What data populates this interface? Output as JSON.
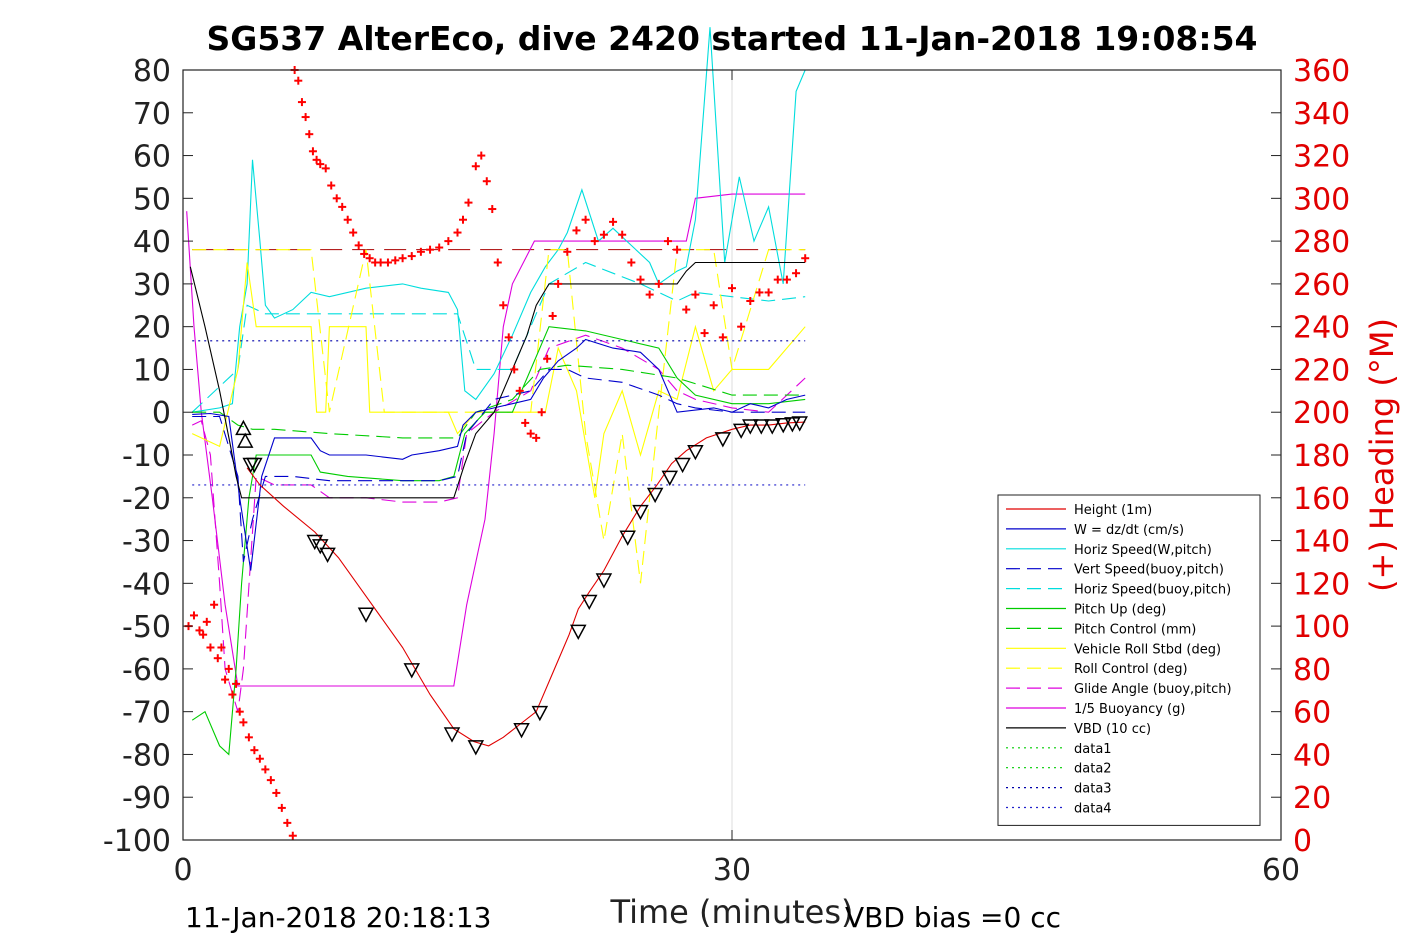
{
  "chart_data": {
    "type": "line",
    "title": "SG537 AlterEco, dive 2420 started 11-Jan-2018 19:08:54",
    "xlabel": "Time (minutes)",
    "ylabel": "",
    "y2label": "(+) Heading (°M)",
    "xlim": [
      0,
      60
    ],
    "ylim": [
      -100,
      80
    ],
    "y2lim": [
      0,
      360
    ],
    "xticks": [
      "0",
      "30",
      "60"
    ],
    "yticks": [
      "80",
      "70",
      "60",
      "50",
      "40",
      "30",
      "20",
      "10",
      "0",
      "-10",
      "-20",
      "-30",
      "-40",
      "-50",
      "-60",
      "-70",
      "-80",
      "-90",
      "-100"
    ],
    "y2ticks": [
      "360",
      "340",
      "320",
      "300",
      "280",
      "260",
      "240",
      "220",
      "200",
      "180",
      "160",
      "140",
      "120",
      "100",
      "80",
      "60",
      "40",
      "20",
      "0"
    ],
    "grid": "x-only at 30",
    "legend_position": "lower-right",
    "colors": {
      "height": "#e00000",
      "w": "#0000cc",
      "horiz": "#00dddd",
      "green": "#00cc00",
      "yellow": "#ffff00",
      "magenta": "#dd00dd",
      "black": "#000000",
      "heading": "#ff0000",
      "data3": "#0000aa",
      "data4": "#2222cc"
    },
    "series": [
      {
        "name": "Height (1m)",
        "color": "#e00000",
        "style": "solid",
        "x": [
          3.5,
          4.2,
          5.5,
          7.2,
          8.5,
          10,
          12,
          13.5,
          14.8,
          15.9,
          16.7,
          17.5,
          18.4,
          19.3,
          20.3,
          21.1,
          21.6,
          22.2,
          23,
          24,
          25,
          25.9,
          26.7,
          27.5,
          28.6,
          30,
          31,
          32,
          33,
          34
        ],
        "y": [
          -13,
          -17,
          -22,
          -28,
          -34,
          -43,
          -55,
          -66,
          -74,
          -77,
          -78,
          -76,
          -73,
          -70,
          -60,
          -52,
          -46,
          -42,
          -37,
          -29,
          -22,
          -17,
          -12,
          -9,
          -6,
          -4,
          -3,
          -3,
          -2.5,
          -2.3
        ]
      },
      {
        "name": "W = dz/dt (cm/s)",
        "color": "#0000cc",
        "style": "solid",
        "x": [
          0.5,
          1.5,
          2.5,
          3.1,
          3.7,
          4.3,
          5,
          6,
          7,
          7.5,
          8,
          10,
          12,
          12.5,
          14,
          15,
          15.3,
          16,
          17,
          18,
          19,
          19.7,
          20.5,
          21.5,
          22,
          23.5,
          25,
          26,
          27,
          29,
          30,
          31,
          32,
          33,
          34
        ],
        "y": [
          -0.5,
          -0.3,
          -1,
          -20,
          -37,
          -15,
          -6,
          -6,
          -6,
          -9,
          -10,
          -10,
          -11,
          -10,
          -9,
          -8,
          -3,
          0,
          1,
          2,
          3,
          8,
          12,
          15,
          17,
          15,
          14,
          10,
          0,
          1,
          0,
          2,
          1,
          3,
          4
        ]
      },
      {
        "name": "Horiz Speed(W,pitch)",
        "color": "#00dddd",
        "style": "solid",
        "x": [
          0.5,
          2,
          2.7,
          3.1,
          3.5,
          3.8,
          4.2,
          4.5,
          5,
          6,
          6.5,
          7,
          8,
          10,
          12,
          13,
          14.5,
          15,
          15.4,
          16,
          17,
          18,
          19,
          19.8,
          20.5,
          21,
          21.8,
          22.7,
          23.5,
          24.5,
          25.5,
          26,
          27,
          27.5,
          28,
          28.8,
          29.6,
          30.4,
          31.2,
          32,
          32.8,
          33.5,
          34
        ],
        "y": [
          0,
          1,
          2,
          20,
          30,
          59,
          40,
          25,
          22,
          24,
          26,
          28,
          27,
          29,
          30,
          29,
          28,
          24,
          5,
          3,
          9,
          18,
          28,
          34,
          38,
          42,
          52,
          40,
          43,
          39,
          35,
          30,
          33,
          34,
          45,
          90,
          35,
          55,
          40,
          48,
          30,
          75,
          80
        ]
      },
      {
        "name": "Vert Speed(buoy,pitch)",
        "color": "#0000cc",
        "style": "dashed",
        "x": [
          0.5,
          2,
          3,
          3.3,
          3.8,
          4.5,
          6,
          8,
          10,
          12,
          14,
          15,
          15.5,
          17,
          19,
          20,
          21,
          22,
          24,
          26,
          27,
          28,
          30,
          32,
          34
        ],
        "y": [
          -1,
          -1,
          -15,
          -35,
          -25,
          -15,
          -15,
          -16,
          -16,
          -16,
          -16,
          -15,
          -5,
          3,
          5,
          10,
          10,
          8,
          7,
          4,
          2,
          1,
          0,
          0,
          0
        ]
      },
      {
        "name": "Horiz Speed(buoy,pitch)",
        "color": "#00dddd",
        "style": "dashed",
        "x": [
          0.5,
          3,
          3.5,
          4.5,
          8,
          12,
          15,
          16,
          18,
          20,
          22,
          25,
          27,
          28,
          30,
          32,
          34
        ],
        "y": [
          0,
          10,
          25,
          23,
          23,
          23,
          23,
          10,
          10,
          30,
          35,
          30,
          26,
          28,
          27,
          26,
          27
        ]
      },
      {
        "name": "Pitch Up (deg)",
        "color": "#00cc00",
        "style": "solid",
        "x": [
          0.5,
          1.2,
          2,
          2.5,
          2.9,
          3.2,
          3.6,
          4,
          4.5,
          6,
          7,
          7.5,
          9,
          12,
          14,
          14.8,
          15.4,
          16.5,
          18,
          19.2,
          20,
          22,
          24,
          26,
          27,
          28,
          30,
          32,
          34
        ],
        "y": [
          -72,
          -70,
          -78,
          -80,
          -60,
          -40,
          -20,
          -10,
          -10,
          -10,
          -10,
          -14,
          -15,
          -16,
          -16,
          -15,
          -5,
          0,
          0,
          12,
          20,
          19,
          17,
          15,
          8,
          4,
          2,
          2,
          3
        ]
      },
      {
        "name": "Pitch Control (mm)",
        "color": "#00cc00",
        "style": "dashed",
        "x": [
          0.5,
          2,
          3,
          3.8,
          5,
          8,
          12,
          15,
          16,
          18,
          19.5,
          21,
          24,
          27,
          30,
          34
        ],
        "y": [
          0,
          0,
          -3,
          -4,
          -4,
          -5,
          -6,
          -6,
          0,
          3,
          10,
          11,
          10,
          8,
          4,
          4
        ]
      },
      {
        "name": "Vehicle Roll Stbd (deg)",
        "color": "#ffff00",
        "style": "solid",
        "x": [
          0.5,
          2,
          3,
          3.5,
          4,
          5,
          7,
          7.3,
          7.8,
          8,
          10,
          10.2,
          11,
          14.5,
          15,
          16,
          17.5,
          19.8,
          20.5,
          21.5,
          22.5,
          23,
          24,
          25,
          26,
          27,
          28,
          29,
          30,
          32,
          34
        ],
        "y": [
          -5,
          -8,
          10,
          35,
          20,
          20,
          20,
          0,
          0,
          20,
          20,
          0,
          0,
          0,
          -5,
          0,
          0,
          0,
          15,
          5,
          -20,
          -5,
          5,
          -10,
          5,
          3,
          20,
          5,
          10,
          10,
          20
        ]
      },
      {
        "name": "Roll Control (deg)",
        "color": "#ffff00",
        "style": "dashed",
        "x": [
          0.5,
          2,
          3,
          4,
          7,
          8,
          10,
          11,
          14,
          15,
          19,
          20,
          21,
          22,
          23,
          24,
          25,
          26,
          27,
          29,
          30,
          32,
          34
        ],
        "y": [
          38,
          38,
          38,
          38,
          38,
          0,
          38,
          0,
          0,
          0,
          0,
          38,
          38,
          -5,
          -30,
          -5,
          -40,
          0,
          38,
          38,
          10,
          38,
          38
        ]
      },
      {
        "name": "Glide Angle (buoy,pitch)",
        "color": "#dd00dd",
        "style": "dashed",
        "x": [
          0.5,
          1,
          1.5,
          2,
          2.3,
          3,
          3.3,
          4,
          5,
          7,
          8,
          10,
          12,
          14,
          15,
          15.5,
          17,
          19,
          20,
          22,
          24,
          26,
          27,
          28,
          30,
          32,
          34
        ],
        "y": [
          -3,
          -2,
          -10,
          -40,
          -60,
          -70,
          -60,
          -15,
          -17,
          -17,
          -20,
          -20,
          -21,
          -21,
          -20,
          -5,
          0,
          5,
          15,
          18,
          15,
          10,
          5,
          3,
          1,
          0,
          8
        ]
      },
      {
        "name": "1/5 Buoyancy (g)",
        "color": "#dd00dd",
        "style": "solid",
        "x": [
          0.2,
          0.6,
          1,
          1.6,
          2.3,
          3,
          3.5,
          4,
          8,
          12,
          14.8,
          15.5,
          16.5,
          17,
          17.5,
          18,
          19.2,
          21,
          23,
          25,
          26,
          27.5,
          28,
          30,
          32,
          34
        ],
        "y": [
          47,
          20,
          0,
          -20,
          -45,
          -64,
          -64,
          -64,
          -64,
          -64,
          -64,
          -45,
          -25,
          -5,
          20,
          30,
          40,
          40,
          40,
          40,
          40,
          40,
          50,
          51,
          51,
          51
        ]
      },
      {
        "name": "VBD (10 cc)",
        "color": "#000000",
        "style": "solid",
        "x": [
          0.4,
          1.2,
          2,
          2.6,
          2.9,
          3.2,
          5,
          10,
          14,
          14.8,
          15.4,
          16,
          17,
          18,
          18.8,
          19.3,
          20,
          22,
          26,
          27,
          27.5,
          28,
          30,
          32,
          34
        ],
        "y": [
          34,
          20,
          5,
          -8,
          -15,
          -20,
          -20,
          -20,
          -20,
          -20,
          -12,
          -5,
          0,
          10,
          18,
          25,
          30,
          30,
          30,
          30,
          33,
          35,
          35,
          35,
          35
        ]
      },
      {
        "name": "data1",
        "color": "#00cc00",
        "style": "dotted",
        "x": [],
        "y": []
      },
      {
        "name": "data2",
        "color": "#00cc00",
        "style": "dotted",
        "x": [],
        "y": []
      },
      {
        "name": "data3",
        "color": "#0000aa",
        "style": "dotted",
        "x": [
          0.5,
          34
        ],
        "y": [
          16.7,
          16.7
        ]
      },
      {
        "name": "data4",
        "color": "#2222cc",
        "style": "dotted",
        "x": [
          0.5,
          34
        ],
        "y": [
          -17,
          -17
        ]
      }
    ],
    "heading_reference": {
      "color": "#aa0000",
      "style": "dashed",
      "y2": 276,
      "x": [
        0.5,
        34
      ]
    },
    "heading_points": {
      "marker": "+",
      "color": "#ff0000",
      "x": [
        0.3,
        0.6,
        0.9,
        1.1,
        1.3,
        1.5,
        1.7,
        1.9,
        2.1,
        2.3,
        2.5,
        2.7,
        2.9,
        3.1,
        3.3,
        3.6,
        3.9,
        4.2,
        4.5,
        4.8,
        5.1,
        5.4,
        5.7,
        6.0,
        6.1,
        6.3,
        6.5,
        6.7,
        6.9,
        7.1,
        7.3,
        7.5,
        7.8,
        8.1,
        8.4,
        8.7,
        9.0,
        9.3,
        9.6,
        9.9,
        10.2,
        10.5,
        10.8,
        11.2,
        11.6,
        12,
        12.5,
        13,
        13.5,
        14,
        14.5,
        15,
        15.3,
        15.6,
        16,
        16.3,
        16.6,
        16.9,
        17.2,
        17.5,
        17.8,
        18.1,
        18.4,
        18.7,
        19,
        19.3,
        19.6,
        19.9,
        20.2,
        20.5,
        21,
        21.5,
        22,
        22.5,
        23,
        23.5,
        24,
        24.5,
        25,
        25.5,
        26,
        26.5,
        27,
        27.5,
        28,
        28.5,
        29,
        29.5,
        30,
        30.5,
        31,
        31.5,
        32,
        32.5,
        33,
        33.5,
        34
      ],
      "y2": [
        100,
        105,
        98,
        96,
        102,
        90,
        110,
        85,
        90,
        75,
        80,
        68,
        73,
        60,
        55,
        48,
        42,
        38,
        33,
        28,
        22,
        15,
        8,
        2,
        360,
        355,
        345,
        338,
        330,
        322,
        318,
        316,
        314,
        306,
        300,
        296,
        290,
        284,
        278,
        274,
        272,
        270,
        270,
        270,
        271,
        272,
        273,
        275,
        276,
        277,
        280,
        284,
        290,
        298,
        315,
        320,
        308,
        295,
        270,
        250,
        235,
        220,
        210,
        195,
        190,
        188,
        200,
        225,
        245,
        260,
        275,
        285,
        290,
        280,
        283,
        289,
        283,
        270,
        262,
        255,
        260,
        280,
        276,
        248,
        255,
        237,
        250,
        235,
        258,
        240,
        252,
        256,
        256,
        262,
        262,
        265,
        272
      ]
    },
    "triangle_markers": {
      "color": "#000000",
      "x": [
        3.3,
        3.4,
        3.7,
        3.9,
        7.2,
        7.5,
        7.9,
        10,
        12.5,
        14.7,
        16,
        18.5,
        19.5,
        21.6,
        22.2,
        23,
        24.3,
        25,
        25.8,
        26.6,
        27.3,
        28,
        29.5,
        30.5,
        31,
        31.6,
        32.2,
        32.8,
        33.3,
        33.7
      ],
      "y": [
        -4,
        -7,
        -12,
        -12,
        -30,
        -31,
        -33,
        -47,
        -60,
        -75,
        -78,
        -74,
        -70,
        -51,
        -44,
        -39,
        -29,
        -23,
        -19,
        -15,
        -12,
        -9,
        -6,
        -4,
        -3,
        -3,
        -3,
        -2.7,
        -2.5,
        -2.3
      ]
    }
  },
  "footer": {
    "timestamp": "11-Jan-2018 20:18:13",
    "vbd_bias": "VBD bias =0 cc"
  }
}
